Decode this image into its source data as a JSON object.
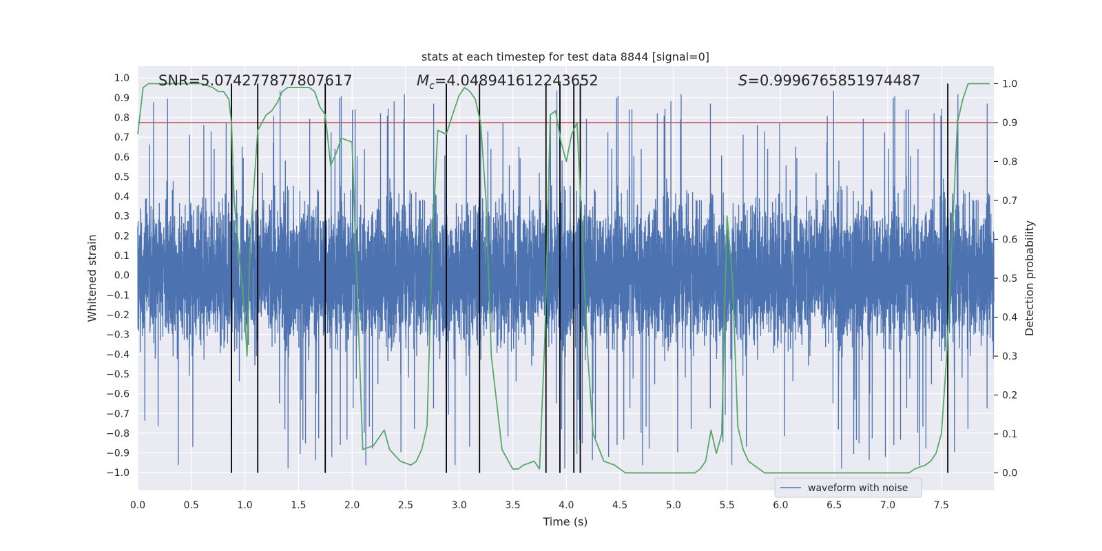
{
  "chart_data": {
    "type": "line",
    "title": "stats at each timestep for test data 8844 [signal=0]",
    "xlabel": "Time (s)",
    "ylabel_left": "Whitened strain",
    "ylabel_right": "Detection probability",
    "xlim": [
      0.0,
      7.99
    ],
    "ylim_left": [
      -1.09,
      1.06
    ],
    "ylim_right": [
      -0.045,
      1.045
    ],
    "grid": true,
    "x_ticks": [
      0.0,
      0.5,
      1.0,
      1.5,
      2.0,
      2.5,
      3.0,
      3.5,
      4.0,
      4.5,
      5.0,
      5.5,
      6.0,
      6.5,
      7.0,
      7.5
    ],
    "x_tick_labels": [
      "0.0",
      "0.5",
      "1.0",
      "1.5",
      "2.0",
      "2.5",
      "3.0",
      "3.5",
      "4.0",
      "4.5",
      "5.0",
      "5.5",
      "6.0",
      "6.5",
      "7.0",
      "7.5"
    ],
    "y_ticks_left": [
      1.0,
      0.9,
      0.8,
      0.7,
      0.6,
      0.5,
      0.4,
      0.3,
      0.2,
      0.1,
      0.0,
      -0.1,
      -0.2,
      -0.3,
      -0.4,
      -0.5,
      -0.6,
      -0.7,
      -0.8,
      -0.9,
      -1.0
    ],
    "y_tick_labels_left": [
      "1.0",
      "0.9",
      "0.8",
      "0.7",
      "0.6",
      "0.5",
      "0.4",
      "0.3",
      "0.2",
      "0.1",
      "0.0",
      "−0.1",
      "−0.2",
      "−0.3",
      "−0.4",
      "−0.5",
      "−0.6",
      "−0.7",
      "−0.8",
      "−0.9",
      "−1.0"
    ],
    "y_ticks_right": [
      1.0,
      0.9,
      0.8,
      0.7,
      0.6,
      0.5,
      0.4,
      0.3,
      0.2,
      0.1,
      0.0
    ],
    "y_tick_labels_right": [
      "1.0",
      "0.9",
      "0.8",
      "0.7",
      "0.6",
      "0.5",
      "0.4",
      "0.3",
      "0.2",
      "0.1",
      "0.0"
    ],
    "legend": {
      "placement": "bottom-right",
      "entries": [
        "waveform with noise"
      ]
    },
    "annotations": {
      "snr": "SNR=5.074277877807617",
      "mc_symbol": "M",
      "mc_sub": "c",
      "mc_value": "=4.048941612243652",
      "s_symbol": "S",
      "s_value": "=0.9996765851974487"
    },
    "threshold": {
      "axis": "right",
      "value": 0.9
    },
    "event_times": [
      0.875,
      1.12,
      1.75,
      2.88,
      3.19,
      3.81,
      3.94,
      4.07,
      4.13,
      7.56
    ],
    "waveform": {
      "name": "waveform with noise",
      "n_samples": 8192,
      "seed": 8844,
      "typical_upper": 0.55,
      "typical_lower": -0.5,
      "spike_max": 0.98,
      "spike_min": -0.99
    },
    "probability": {
      "x": [
        0.0,
        0.05,
        0.1,
        0.2,
        0.3,
        0.4,
        0.5,
        0.6,
        0.7,
        0.75,
        0.8,
        0.85,
        0.875,
        0.9,
        1.0,
        1.02,
        1.05,
        1.12,
        1.2,
        1.25,
        1.3,
        1.35,
        1.4,
        1.5,
        1.6,
        1.65,
        1.7,
        1.75,
        1.8,
        1.85,
        1.9,
        2.0,
        2.1,
        2.2,
        2.3,
        2.35,
        2.45,
        2.55,
        2.6,
        2.65,
        2.7,
        2.75,
        2.8,
        2.88,
        2.95,
        3.0,
        3.05,
        3.1,
        3.15,
        3.2,
        3.25,
        3.3,
        3.4,
        3.5,
        3.55,
        3.6,
        3.7,
        3.75,
        3.8,
        3.85,
        3.9,
        3.95,
        4.0,
        4.05,
        4.1,
        4.15,
        4.2,
        4.25,
        4.35,
        4.45,
        4.55,
        4.65,
        4.8,
        5.0,
        5.1,
        5.2,
        5.25,
        5.3,
        5.35,
        5.4,
        5.45,
        5.5,
        5.55,
        5.6,
        5.65,
        5.7,
        5.75,
        5.8,
        5.85,
        5.9,
        6.0,
        6.1,
        6.2,
        6.3,
        6.4,
        6.5,
        6.6,
        6.8,
        7.0,
        7.1,
        7.15,
        7.2,
        7.25,
        7.35,
        7.4,
        7.45,
        7.5,
        7.55,
        7.6,
        7.65,
        7.7,
        7.75,
        7.8,
        7.95
      ],
      "values": [
        0.87,
        0.99,
        1.0,
        1.0,
        1.0,
        1.0,
        1.0,
        1.0,
        0.99,
        0.98,
        0.98,
        0.96,
        0.9,
        0.7,
        0.4,
        0.3,
        0.6,
        0.88,
        0.92,
        0.93,
        0.95,
        0.98,
        0.99,
        0.99,
        0.99,
        0.98,
        0.94,
        0.92,
        0.79,
        0.82,
        0.86,
        0.85,
        0.06,
        0.07,
        0.11,
        0.06,
        0.03,
        0.02,
        0.03,
        0.06,
        0.12,
        0.6,
        0.88,
        0.87,
        0.93,
        0.97,
        0.99,
        0.98,
        0.96,
        0.9,
        0.7,
        0.3,
        0.06,
        0.01,
        0.01,
        0.02,
        0.03,
        0.01,
        0.35,
        0.92,
        0.93,
        0.85,
        0.8,
        0.87,
        0.9,
        0.6,
        0.3,
        0.1,
        0.03,
        0.02,
        0.0,
        0.0,
        0.0,
        0.0,
        0.0,
        0.0,
        0.01,
        0.03,
        0.11,
        0.05,
        0.1,
        0.66,
        0.5,
        0.12,
        0.06,
        0.03,
        0.02,
        0.01,
        0.0,
        0.0,
        0.0,
        0.0,
        0.0,
        0.0,
        0.0,
        0.0,
        0.0,
        0.0,
        0.0,
        0.0,
        0.0,
        0.0,
        0.01,
        0.02,
        0.03,
        0.05,
        0.1,
        0.3,
        0.6,
        0.9,
        0.96,
        1.0,
        1.0,
        1.0
      ]
    },
    "colors": {
      "background": "#eaeaf2",
      "grid": "#ffffff",
      "waveform": "#4c72b0",
      "probability": "#55a868",
      "threshold": "#c44e52",
      "events": "#000000"
    }
  }
}
